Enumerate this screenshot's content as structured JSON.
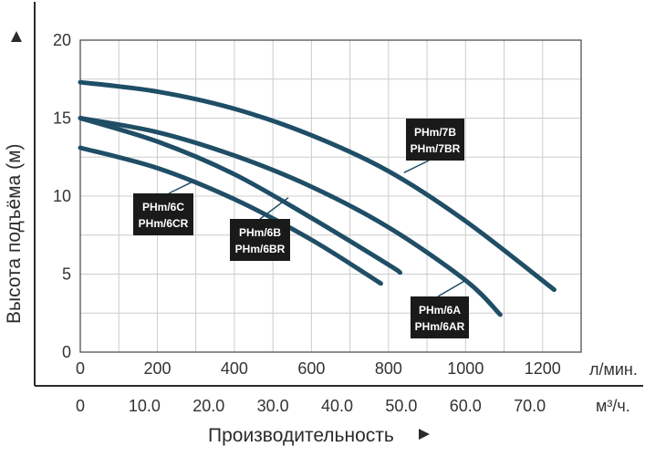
{
  "chart_data": {
    "type": "line",
    "ylabel": "Высота подъёма (м)",
    "xlabel": "Производительность",
    "x_unit_primary": "л/мин.",
    "x_unit_secondary": "м³/ч.",
    "xlim": [
      0,
      1300
    ],
    "ylim": [
      0,
      20
    ],
    "x_ticks": [
      "0",
      "200",
      "400",
      "600",
      "800",
      "1000",
      "1200"
    ],
    "x2_ticks": [
      "0",
      "10.0",
      "20.0",
      "30.0",
      "40.0",
      "50.0",
      "60.0",
      "70.0"
    ],
    "y_ticks": [
      "0",
      "5",
      "10",
      "15",
      "20"
    ],
    "grid": true,
    "series": [
      {
        "name": "PHm/7B PHm/7BR",
        "label_lines": [
          "PHm/7B",
          "PHm/7BR"
        ],
        "x": [
          0,
          200,
          400,
          600,
          800,
          1000,
          1230
        ],
        "y": [
          17.3,
          16.7,
          15.6,
          13.9,
          11.6,
          8.4,
          4.0
        ]
      },
      {
        "name": "PHm/6A PHm/6AR",
        "label_lines": [
          "PHm/6A",
          "PHm/6AR"
        ],
        "x": [
          0,
          200,
          400,
          600,
          800,
          1000,
          1090
        ],
        "y": [
          15.0,
          14.1,
          12.6,
          10.6,
          8.0,
          4.6,
          2.4
        ]
      },
      {
        "name": "PHm/6B PHm/6BR",
        "label_lines": [
          "PHm/6B",
          "PHm/6BR"
        ],
        "x": [
          0,
          200,
          400,
          600,
          800,
          830
        ],
        "y": [
          15.0,
          13.5,
          11.4,
          8.6,
          5.6,
          5.1
        ]
      },
      {
        "name": "PHm/6C PHm/6CR",
        "label_lines": [
          "PHm/6C",
          "PHm/6CR"
        ],
        "x": [
          0,
          200,
          400,
          600,
          780
        ],
        "y": [
          13.1,
          11.8,
          9.8,
          7.2,
          4.4
        ]
      }
    ],
    "colors": {
      "curve": "#1f4e66",
      "grid": "#cccccc",
      "plot_border": "#444444",
      "label_bg": "#1a1a1a",
      "label_text": "#ffffff"
    }
  }
}
